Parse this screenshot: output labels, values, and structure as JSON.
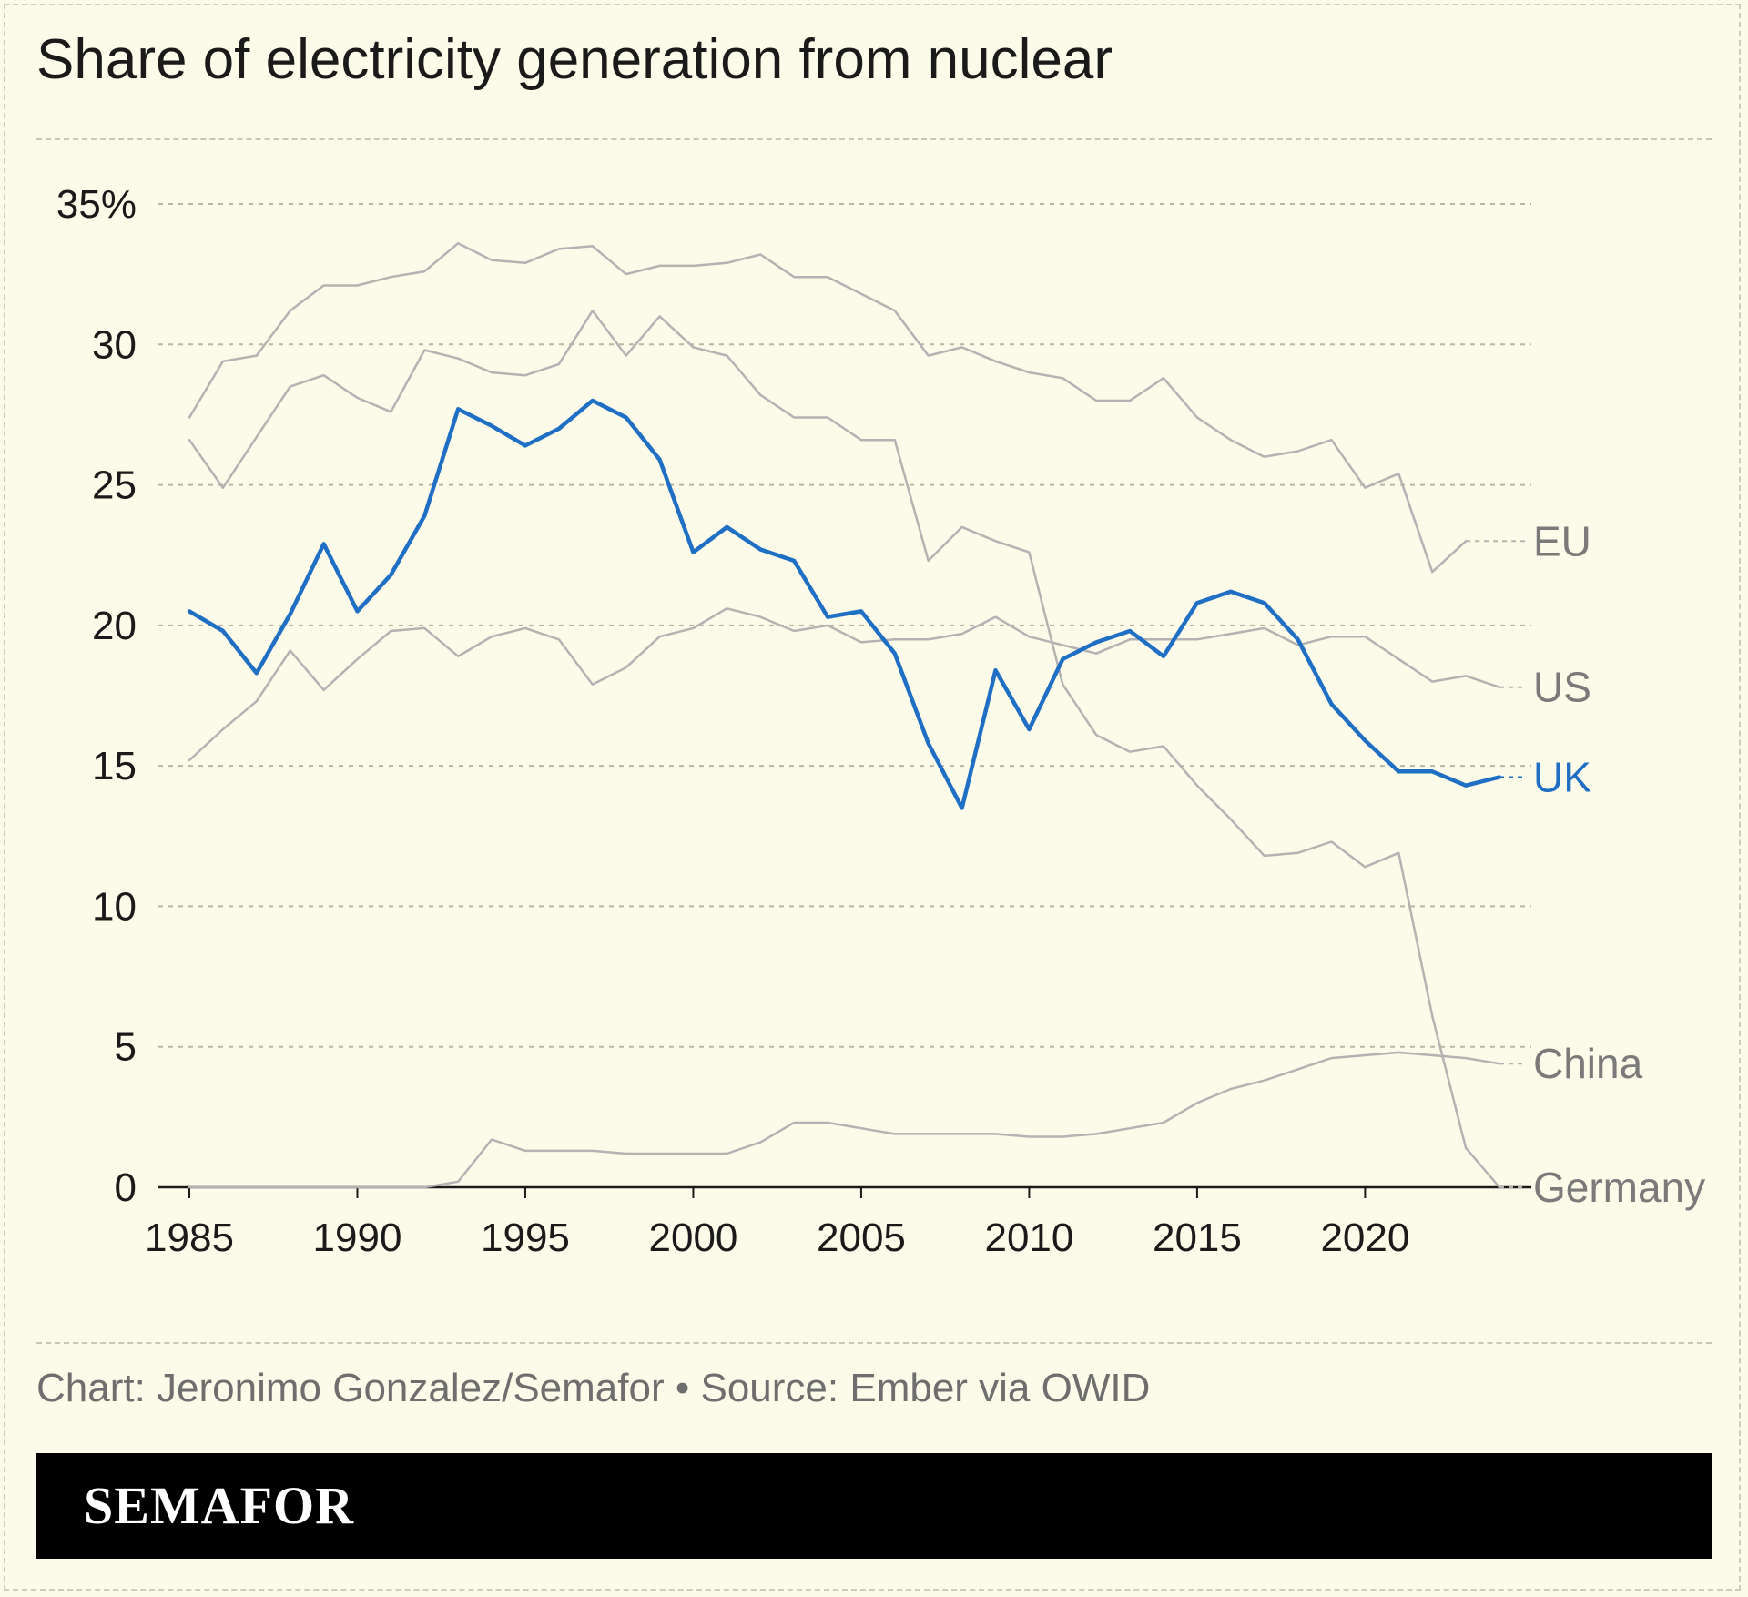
{
  "title": "Share of electricity generation from nuclear",
  "credit": "Chart: Jeronimo Gonzalez/Semafor • Source: Ember via OWID",
  "brand": "SEMAFOR",
  "colors": {
    "background": "#fcfae8",
    "highlight": "#1f6fc5",
    "muted": "#b3b3b3",
    "text": "#1a1a1a"
  },
  "chart_data": {
    "type": "line",
    "title": "Share of electricity generation from nuclear",
    "xlabel": "",
    "ylabel": "",
    "xlim": [
      1985,
      2024
    ],
    "ylim": [
      0,
      35
    ],
    "x_ticks": [
      "1985",
      "1990",
      "1995",
      "2000",
      "2005",
      "2010",
      "2015",
      "2020"
    ],
    "y_ticks": [
      "0",
      "5",
      "10",
      "15",
      "20",
      "25",
      "30",
      "35%"
    ],
    "grid": true,
    "legend": "direct labels at right end of lines",
    "x": [
      1985,
      1986,
      1987,
      1988,
      1989,
      1990,
      1991,
      1992,
      1993,
      1994,
      1995,
      1996,
      1997,
      1998,
      1999,
      2000,
      2001,
      2002,
      2003,
      2004,
      2005,
      2006,
      2007,
      2008,
      2009,
      2010,
      2011,
      2012,
      2013,
      2014,
      2015,
      2016,
      2017,
      2018,
      2019,
      2020,
      2021,
      2022,
      2023,
      2024
    ],
    "series": [
      {
        "name": "EU",
        "highlight": false,
        "values": [
          27.4,
          29.4,
          29.6,
          31.2,
          32.1,
          32.1,
          32.4,
          32.6,
          33.6,
          33.0,
          32.9,
          33.4,
          33.5,
          32.5,
          32.8,
          32.8,
          32.9,
          33.2,
          32.4,
          32.4,
          31.8,
          31.2,
          29.6,
          29.9,
          29.4,
          29.0,
          28.8,
          28.0,
          28.0,
          28.8,
          27.4,
          26.6,
          26.0,
          26.2,
          26.6,
          24.9,
          25.4,
          21.9,
          23.0,
          null
        ],
        "label_value": 23.0
      },
      {
        "name": "US",
        "highlight": false,
        "values": [
          15.2,
          16.3,
          17.3,
          19.1,
          17.7,
          18.8,
          19.8,
          19.9,
          18.9,
          19.6,
          19.9,
          19.5,
          17.9,
          18.5,
          19.6,
          19.9,
          20.6,
          20.3,
          19.8,
          20.0,
          19.4,
          19.5,
          19.5,
          19.7,
          20.3,
          19.6,
          19.3,
          19.0,
          19.5,
          19.5,
          19.5,
          19.7,
          19.9,
          19.3,
          19.6,
          19.6,
          18.8,
          18.0,
          18.2,
          17.8
        ],
        "label_value": 17.8
      },
      {
        "name": "UK",
        "highlight": true,
        "values": [
          20.5,
          19.8,
          18.3,
          20.4,
          22.9,
          20.5,
          21.8,
          23.9,
          27.7,
          27.1,
          26.4,
          27.0,
          28.0,
          27.4,
          25.9,
          22.6,
          23.5,
          22.7,
          22.3,
          20.3,
          20.5,
          19.0,
          15.8,
          13.5,
          18.4,
          16.3,
          18.8,
          19.4,
          19.8,
          18.9,
          20.8,
          21.2,
          20.8,
          19.5,
          17.2,
          15.9,
          14.8,
          14.8,
          14.3,
          14.6
        ],
        "label_value": 14.6
      },
      {
        "name": "China",
        "highlight": false,
        "values": [
          0,
          0,
          0,
          0,
          0,
          0,
          0,
          0,
          0.2,
          1.7,
          1.3,
          1.3,
          1.3,
          1.2,
          1.2,
          1.2,
          1.2,
          1.6,
          2.3,
          2.3,
          2.1,
          1.9,
          1.9,
          1.9,
          1.9,
          1.8,
          1.8,
          1.9,
          2.1,
          2.3,
          3.0,
          3.5,
          3.8,
          4.2,
          4.6,
          4.7,
          4.8,
          4.7,
          4.6,
          4.4
        ],
        "label_value": 4.4
      },
      {
        "name": "Germany",
        "highlight": false,
        "values": [
          26.6,
          24.9,
          26.7,
          28.5,
          28.9,
          28.1,
          27.6,
          29.8,
          29.5,
          29.0,
          28.9,
          29.3,
          31.2,
          29.6,
          31.0,
          29.9,
          29.6,
          28.2,
          27.4,
          27.4,
          26.6,
          26.6,
          22.3,
          23.5,
          23.0,
          22.6,
          17.9,
          16.1,
          15.5,
          15.7,
          14.3,
          13.1,
          11.8,
          11.9,
          12.3,
          11.4,
          11.9,
          6.1,
          1.4,
          0
        ],
        "label_value": 0
      }
    ]
  }
}
